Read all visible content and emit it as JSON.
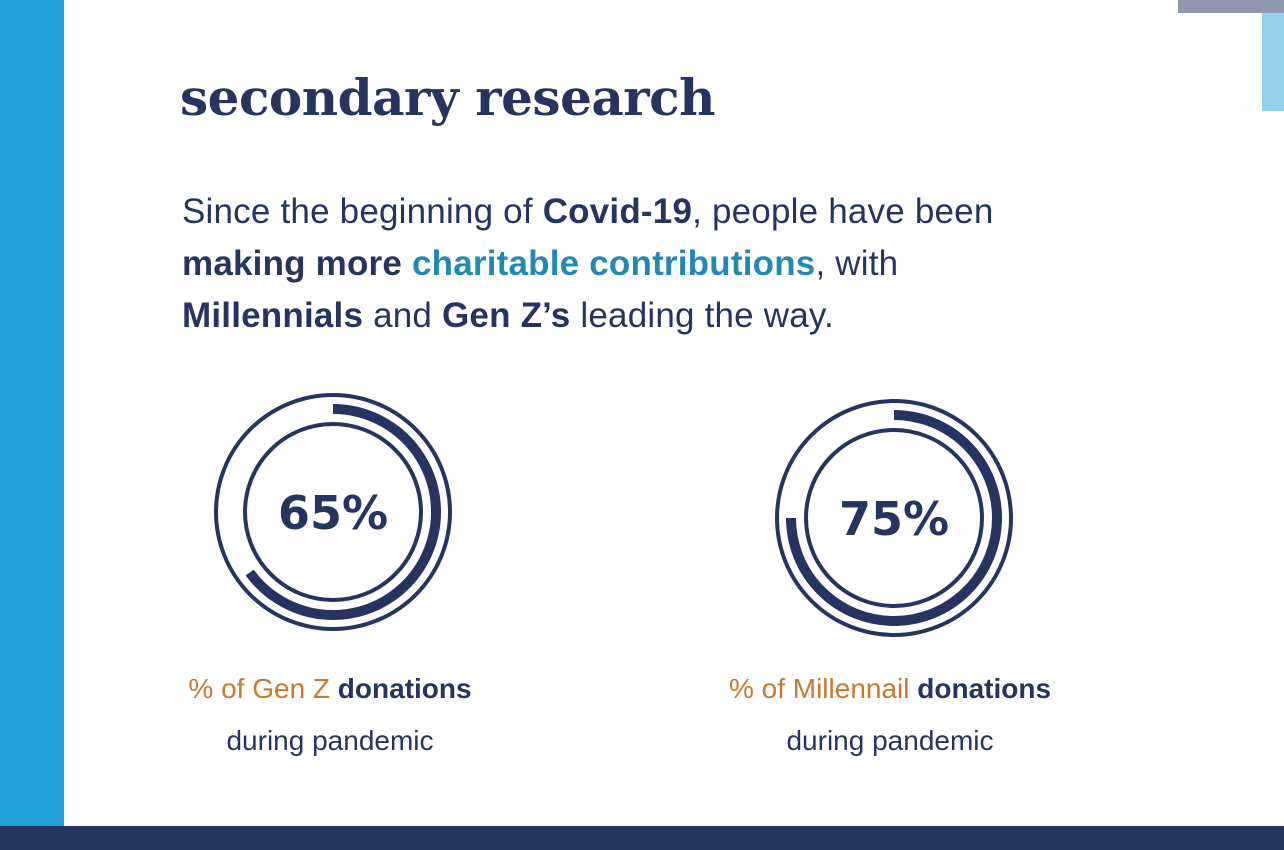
{
  "heading": "secondary research",
  "intro": {
    "p1": "Since the beginning of ",
    "b1": "Covid-19",
    "p2": ", people have been ",
    "b2": "making more",
    "p3": " ",
    "highlight": "charitable contributions",
    "p4": ", with ",
    "b3": "Millennials",
    "p5": " and ",
    "b4": "Gen Z’s",
    "p6": " leading the way."
  },
  "stats": [
    {
      "value_label": "65%",
      "value": 0.65,
      "caption_prefix": "% of ",
      "caption_group": "Gen Z",
      "caption_bold": " donations",
      "caption_line2": "during pandemic"
    },
    {
      "value_label": "75%",
      "value": 0.75,
      "caption_prefix": "% of ",
      "caption_group": "Millennail",
      "caption_bold": " donations",
      "caption_line2": "during pandemic"
    }
  ],
  "colors": {
    "navy": "#263560",
    "accent_blue": "#22a2d8",
    "highlight_teal": "#2289b3",
    "orange": "#c8782f"
  }
}
